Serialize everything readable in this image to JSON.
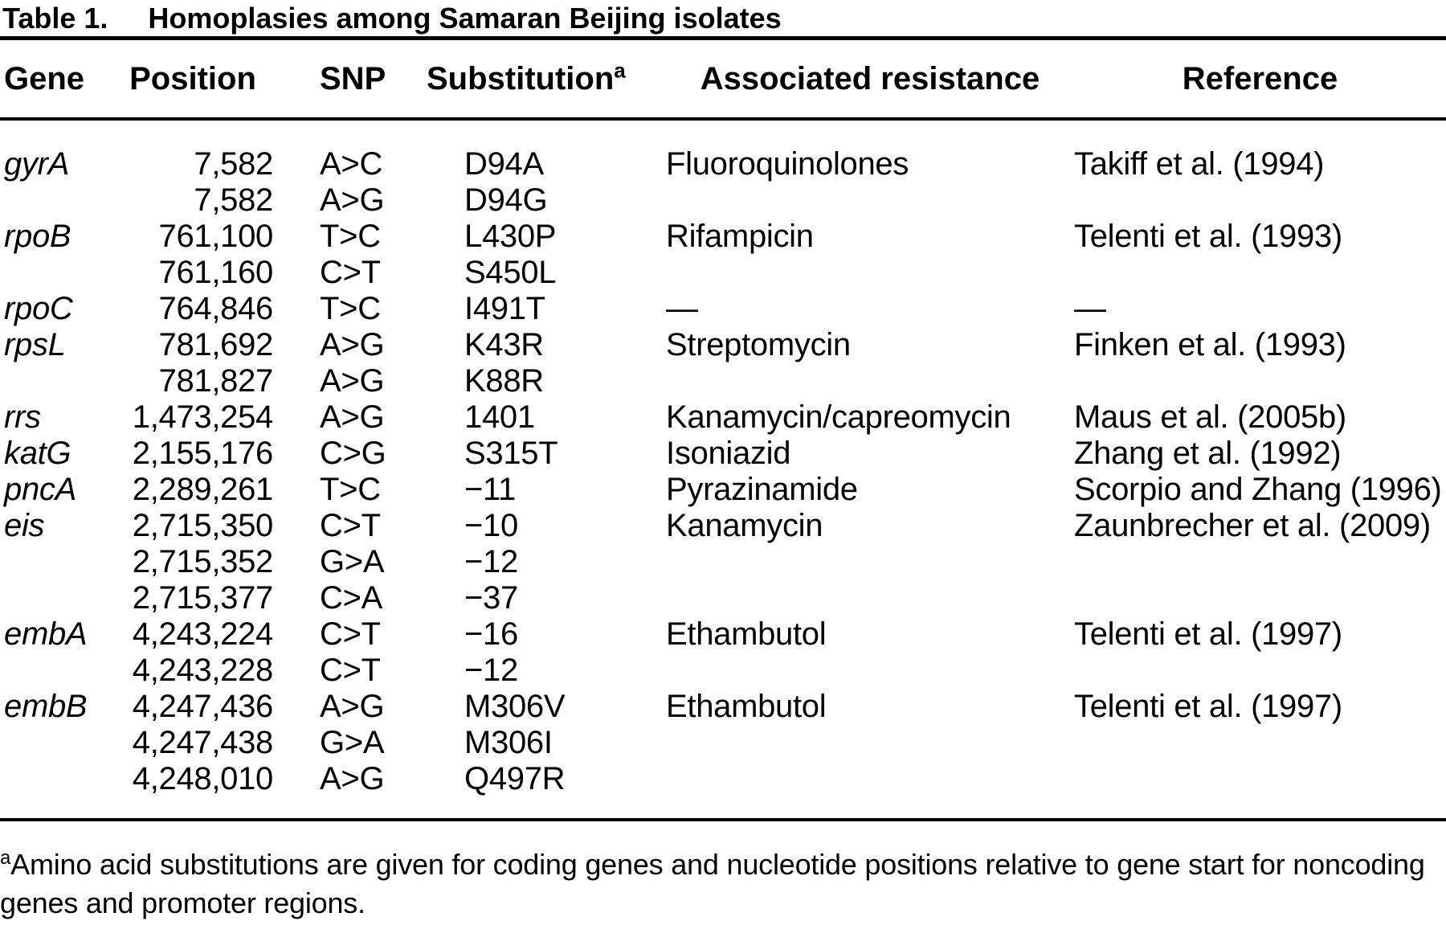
{
  "table": {
    "label": "Table 1.",
    "title": "Homoplasies among Samaran Beijing isolates",
    "columns": {
      "gene": "Gene",
      "position": "Position",
      "snp": "SNP",
      "substitution": "Substitution",
      "substitution_sup": "a",
      "resistance": "Associated resistance",
      "reference": "Reference"
    },
    "rows": [
      {
        "gene": "gyrA",
        "position": "7,582",
        "snp": "A>C",
        "substitution": "D94A",
        "resistance": "Fluoroquinolones",
        "reference": "Takiff et al. (1994)"
      },
      {
        "gene": "",
        "position": "7,582",
        "snp": "A>G",
        "substitution": "D94G",
        "resistance": "",
        "reference": ""
      },
      {
        "gene": "rpoB",
        "position": "761,100",
        "snp": "T>C",
        "substitution": "L430P",
        "resistance": "Rifampicin",
        "reference": "Telenti et al. (1993)"
      },
      {
        "gene": "",
        "position": "761,160",
        "snp": "C>T",
        "substitution": "S450L",
        "resistance": "",
        "reference": ""
      },
      {
        "gene": "rpoC",
        "position": "764,846",
        "snp": "T>C",
        "substitution": "I491T",
        "resistance": "—",
        "reference": "—"
      },
      {
        "gene": "rpsL",
        "position": "781,692",
        "snp": "A>G",
        "substitution": "K43R",
        "resistance": "Streptomycin",
        "reference": "Finken et al. (1993)"
      },
      {
        "gene": "",
        "position": "781,827",
        "snp": "A>G",
        "substitution": "K88R",
        "resistance": "",
        "reference": ""
      },
      {
        "gene": "rrs",
        "position": "1,473,254",
        "snp": "A>G",
        "substitution": "1401",
        "resistance": "Kanamycin/capreomycin",
        "reference": "Maus et al. (2005b)"
      },
      {
        "gene": "katG",
        "position": "2,155,176",
        "snp": "C>G",
        "substitution": "S315T",
        "resistance": "Isoniazid",
        "reference": "Zhang et al. (1992)"
      },
      {
        "gene": "pncA",
        "position": "2,289,261",
        "snp": "T>C",
        "substitution": "−11",
        "resistance": "Pyrazinamide",
        "reference": "Scorpio and Zhang (1996)"
      },
      {
        "gene": "eis",
        "position": "2,715,350",
        "snp": "C>T",
        "substitution": "−10",
        "resistance": "Kanamycin",
        "reference": "Zaunbrecher et al. (2009)"
      },
      {
        "gene": "",
        "position": "2,715,352",
        "snp": "G>A",
        "substitution": "−12",
        "resistance": "",
        "reference": ""
      },
      {
        "gene": "",
        "position": "2,715,377",
        "snp": "C>A",
        "substitution": "−37",
        "resistance": "",
        "reference": ""
      },
      {
        "gene": "embA",
        "position": "4,243,224",
        "snp": "C>T",
        "substitution": "−16",
        "resistance": "Ethambutol",
        "reference": "Telenti et al. (1997)"
      },
      {
        "gene": "",
        "position": "4,243,228",
        "snp": "C>T",
        "substitution": "−12",
        "resistance": "",
        "reference": ""
      },
      {
        "gene": "embB",
        "position": "4,247,436",
        "snp": "A>G",
        "substitution": "M306V",
        "resistance": "Ethambutol",
        "reference": "Telenti et al. (1997)"
      },
      {
        "gene": "",
        "position": "4,247,438",
        "snp": "G>A",
        "substitution": "M306I",
        "resistance": "",
        "reference": ""
      },
      {
        "gene": "",
        "position": "4,248,010",
        "snp": "A>G",
        "substitution": "Q497R",
        "resistance": "",
        "reference": ""
      }
    ],
    "footnote": {
      "marker": "a",
      "text": "Amino acid substitutions are given for coding genes and nucleotide positions relative to gene start for noncoding genes and promoter regions."
    }
  }
}
